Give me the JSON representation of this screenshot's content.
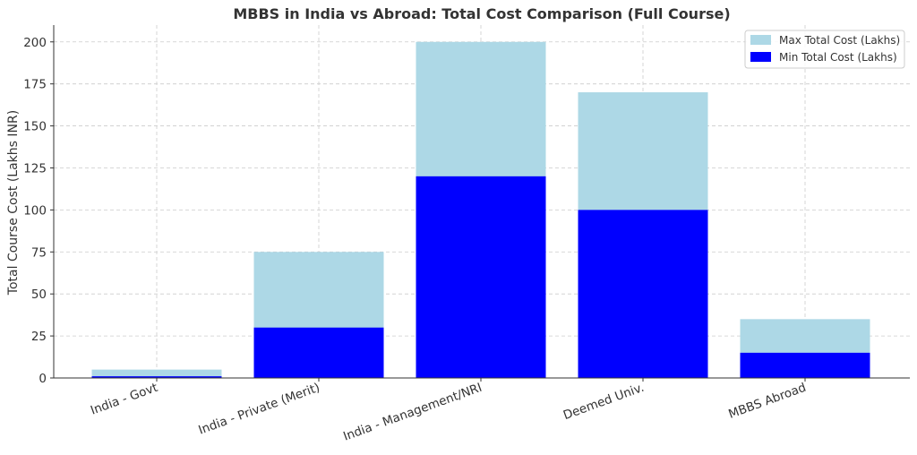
{
  "chart_data": {
    "type": "bar",
    "stacking": "overlay",
    "title": "MBBS in India vs Abroad: Total Cost Comparison (Full Course)",
    "xlabel": "",
    "ylabel": "Total Course Cost (Lakhs INR)",
    "ylim": [
      0,
      210
    ],
    "yticks": [
      0,
      25,
      50,
      75,
      100,
      125,
      150,
      175,
      200
    ],
    "grid": true,
    "legend_position": "top-right",
    "categories": [
      "India - Govt",
      "India - Private (Merit)",
      "India - Management/NRI",
      "Deemed Univ.",
      "MBBS Abroad"
    ],
    "series": [
      {
        "name": "Max Total Cost (Lakhs)",
        "color": "#add8e6",
        "values": [
          5,
          75,
          200,
          170,
          35
        ]
      },
      {
        "name": "Min Total Cost (Lakhs)",
        "color": "#0000ff",
        "values": [
          1,
          30,
          120,
          100,
          15
        ]
      }
    ]
  }
}
